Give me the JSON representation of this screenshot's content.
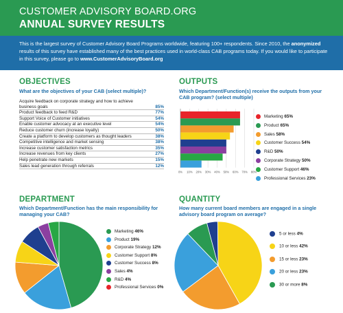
{
  "header": {
    "title": "CUSTOMER ADVISORY BOARD.ORG",
    "subtitle": "ANNUAL SURVEY RESULTS"
  },
  "intro": {
    "part1": "This is the largest survey of Customer Advisory Board Programs worldwide, featuring 100+ respondents. Since 2010, the ",
    "bold1": "anonymized",
    "part2": " results of this survey have established many of the best practices used in world-class CAB programs today. If you would like to participate in this survey, please go to ",
    "bold2": "www.CustomerAdvisoryBoard.org"
  },
  "colors": {
    "green": "#2a9a52",
    "blue": "#1f6ea8"
  },
  "objectives": {
    "title": "OBJECTIVES",
    "question": "What are the objectives of your CAB (select multiple)?",
    "items": [
      {
        "label": "Acquire feedback on corporate strategy and how to achieve business goals",
        "pct": "85%"
      },
      {
        "label": "Product feedback to feed R&D",
        "pct": "77%"
      },
      {
        "label": "Support Voice of Customer initiatives",
        "pct": "54%"
      },
      {
        "label": "Enable customer advocacy at an executive level",
        "pct": "54%"
      },
      {
        "label": "Reduce customer churn (increase loyalty)",
        "pct": "50%"
      },
      {
        "label": "Create a platform to develop customers as thought leaders",
        "pct": "38%"
      },
      {
        "label": "Competitive intelligence and market sensing",
        "pct": "38%"
      },
      {
        "label": "Increase customer satisfaction metrics",
        "pct": "35%"
      },
      {
        "label": "Increase revenues from key clients",
        "pct": "27%"
      },
      {
        "label": "Help penetrate new markets",
        "pct": "15%"
      },
      {
        "label": "Sales lead generation through referrals",
        "pct": "12%"
      }
    ]
  },
  "outputs": {
    "title": "OUTPUTS",
    "question": "Which Department/Function(s) receive the outputs from your CAB program? (select multiple)"
  },
  "department": {
    "title": "DEPARTMENT",
    "question": "Which Department/Function has the main responsibility for managing your CAB?"
  },
  "quantity": {
    "title": "QUANTITY",
    "question": "How many current board members are engaged in a single advisory board program on average?"
  },
  "chart_data": [
    {
      "type": "bar",
      "orientation": "horizontal",
      "categories": [
        "Marketing",
        "Product",
        "Sales",
        "Customer Success",
        "R&D",
        "Corporate Strategy",
        "Customer Support",
        "Professional Services"
      ],
      "values": [
        65,
        65,
        58,
        54,
        50,
        50,
        46,
        23
      ],
      "value_labels": [
        "65%",
        "65%",
        "58%",
        "54%",
        "50%",
        "50%",
        "46%",
        "23%"
      ],
      "colors": [
        "#e8242a",
        "#2a9a52",
        "#f39c2e",
        "#f7d417",
        "#1f3f8f",
        "#8b3fa0",
        "#28a745",
        "#3aa0dc"
      ],
      "x_ticks": [
        "0%",
        "10%",
        "20%",
        "30%",
        "40%",
        "50%",
        "60%",
        "70%",
        "80%"
      ],
      "xlim": [
        0,
        80
      ],
      "grid": true,
      "legend": "right"
    },
    {
      "type": "pie",
      "categories": [
        "Marketing",
        "Product",
        "Corporate Strategy",
        "Customer Support",
        "Customer Success",
        "Sales",
        "R&D",
        "Professional Services"
      ],
      "values": [
        46,
        19,
        12,
        8,
        8,
        4,
        4,
        0
      ],
      "value_labels": [
        "46%",
        "19%",
        "12%",
        "8%",
        "8%",
        "4%",
        "4%",
        "0%"
      ],
      "colors": [
        "#2a9a52",
        "#3aa0dc",
        "#f39c2e",
        "#f7d417",
        "#1f3f8f",
        "#8b3fa0",
        "#28a745",
        "#e8242a"
      ],
      "legend": "right"
    },
    {
      "type": "pie",
      "categories": [
        "5 or less",
        "10 or less",
        "15 or less",
        "20 or less",
        "30 or more"
      ],
      "values": [
        4,
        42,
        23,
        23,
        8
      ],
      "value_labels": [
        "4%",
        "42%",
        "23%",
        "23%",
        "8%"
      ],
      "colors": [
        "#1f3f8f",
        "#f7d417",
        "#f39c2e",
        "#3aa0dc",
        "#2a9a52"
      ],
      "legend": "right"
    }
  ]
}
